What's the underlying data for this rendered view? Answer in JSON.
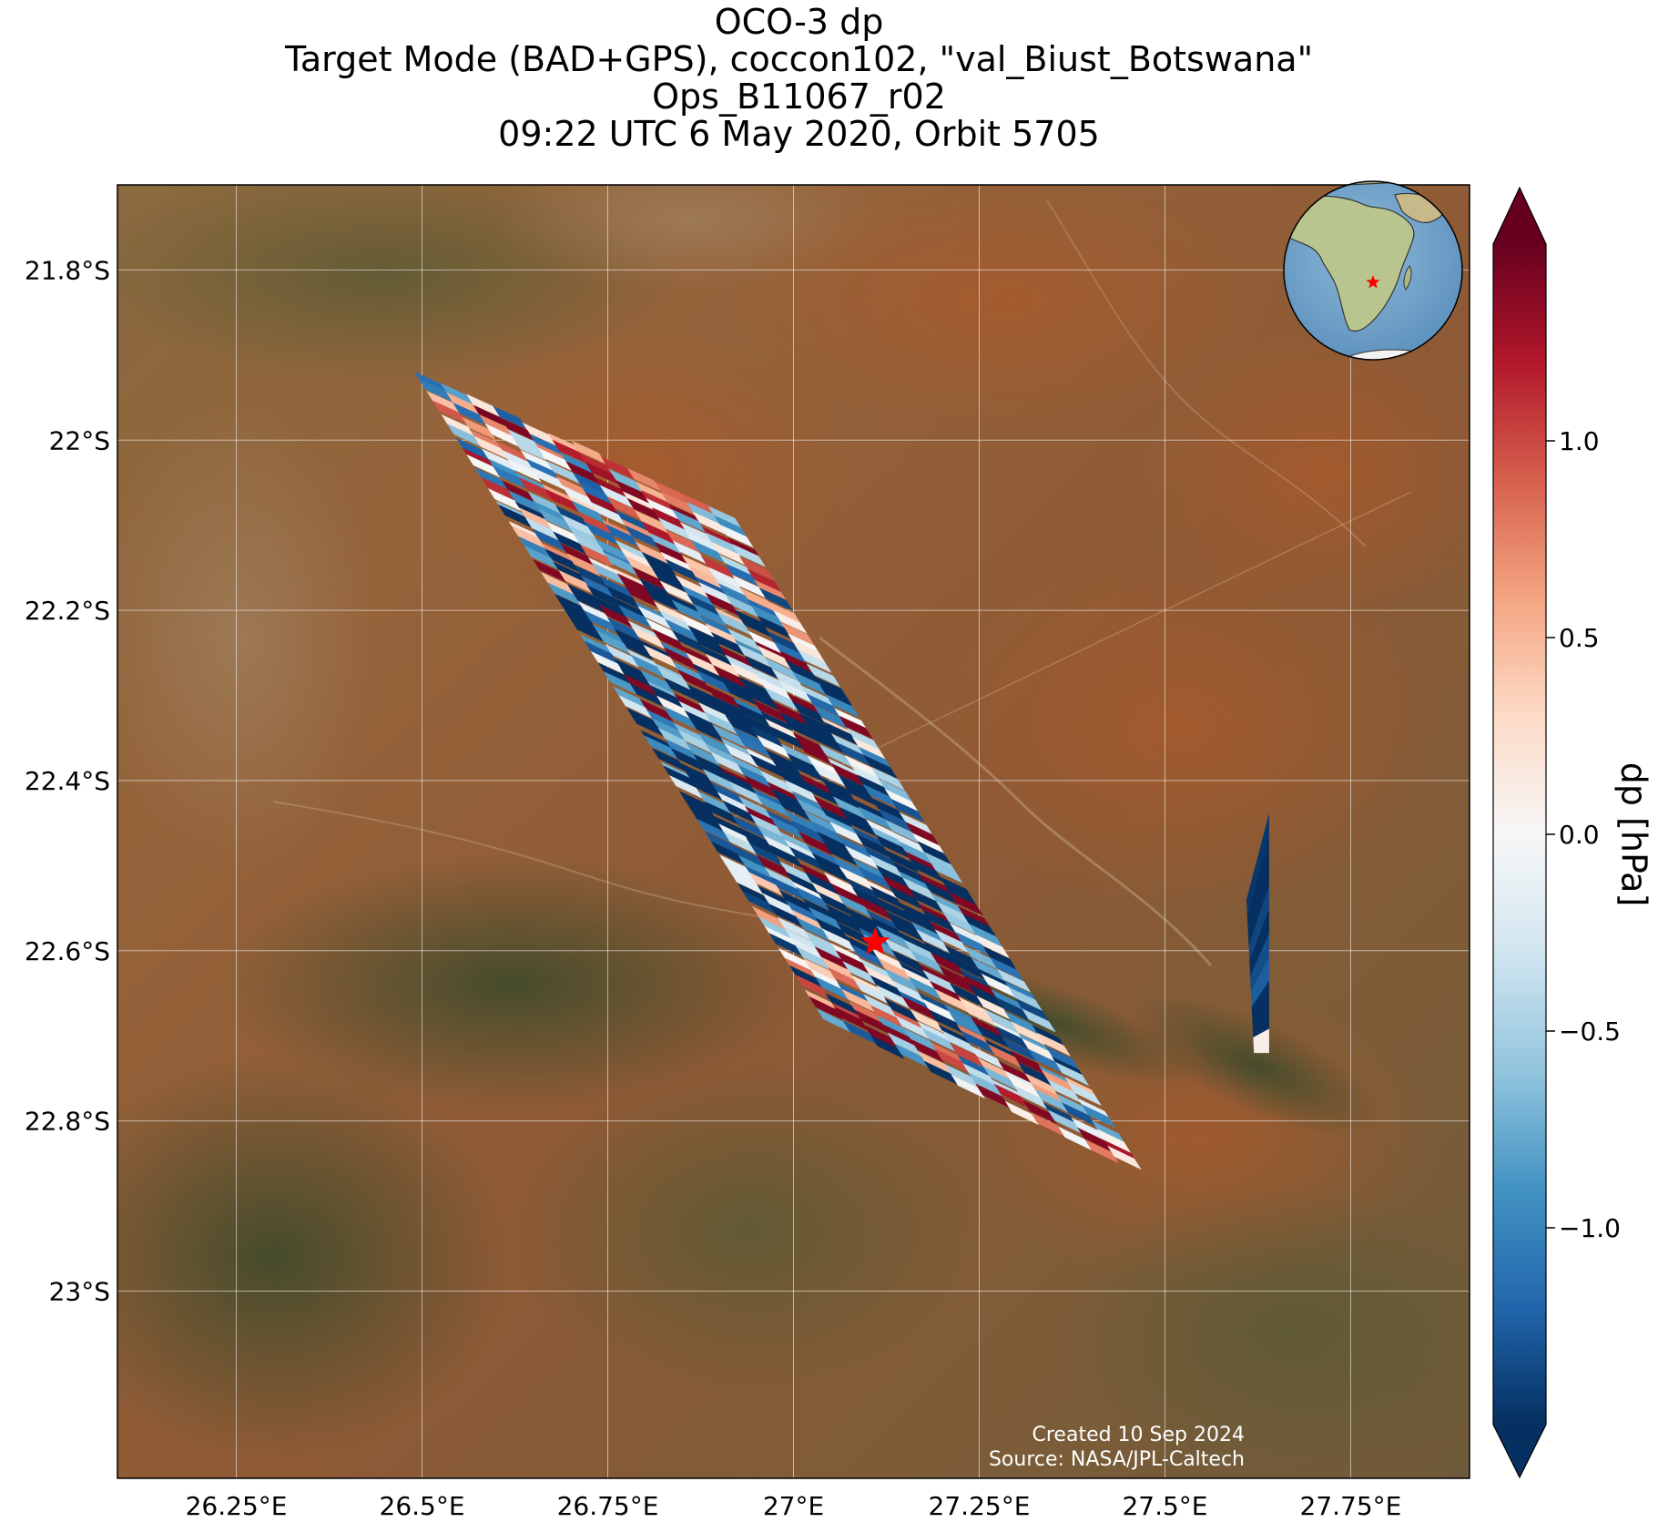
{
  "title": {
    "line1": "OCO-3 dp",
    "line2": "Target Mode (BAD+GPS), coccon102, \"val_Biust_Botswana\"",
    "line3": "Ops_B11067_r02",
    "line4": "09:22 UTC 6 May 2020, Orbit 5705"
  },
  "credits": {
    "created": "Created 10 Sep 2024",
    "source": "Source: NASA/JPL-Caltech"
  },
  "map": {
    "lon_range": [
      26.09,
      27.91
    ],
    "lat_range": [
      -23.22,
      -21.7
    ],
    "lon_ticks": [
      {
        "value": 26.25,
        "label": "26.25°E"
      },
      {
        "value": 26.5,
        "label": "26.5°E"
      },
      {
        "value": 26.75,
        "label": "26.75°E"
      },
      {
        "value": 27.0,
        "label": "27°E"
      },
      {
        "value": 27.25,
        "label": "27.25°E"
      },
      {
        "value": 27.5,
        "label": "27.5°E"
      },
      {
        "value": 27.75,
        "label": "27.75°E"
      }
    ],
    "lat_ticks": [
      {
        "value": -21.8,
        "label": "21.8°S"
      },
      {
        "value": -22.0,
        "label": "22°S"
      },
      {
        "value": -22.2,
        "label": "22.2°S"
      },
      {
        "value": -22.4,
        "label": "22.4°S"
      },
      {
        "value": -22.6,
        "label": "22.6°S"
      },
      {
        "value": -22.8,
        "label": "22.8°S"
      },
      {
        "value": -23.0,
        "label": "23°S"
      }
    ],
    "grid": true,
    "background": "satellite imagery, arid terrain",
    "target": {
      "lon": 27.11,
      "lat": -22.59,
      "marker": "red-star-icon",
      "color": "#ff0000"
    },
    "main_swath": {
      "corners": [
        [
          26.49,
          -21.92
        ],
        [
          26.92,
          -22.09
        ],
        [
          27.47,
          -22.86
        ],
        [
          27.04,
          -22.68
        ]
      ],
      "rows": 12,
      "cols": 62,
      "dp_mean_along_track": [
        0.1,
        -0.2,
        -0.8,
        -1.3,
        -1.5,
        -1.2,
        -0.6,
        -0.1
      ],
      "dp_spread": 0.9
    },
    "small_swath": {
      "corners": [
        [
          27.61,
          -22.54
        ],
        [
          27.64,
          -22.44
        ],
        [
          27.64,
          -22.72
        ],
        [
          27.62,
          -22.72
        ]
      ],
      "dp_typical": -1.4
    },
    "inset_globe": {
      "center_lon": 20,
      "center_lat": -10,
      "marker": "red-star-icon"
    }
  },
  "colorbar": {
    "label": "dp [hPa]",
    "cmap": "RdBu_r",
    "range": [
      -1.5,
      1.5
    ],
    "extend": "both",
    "ticks": [
      {
        "value": 1.0,
        "label": "1.0"
      },
      {
        "value": 0.5,
        "label": "0.5"
      },
      {
        "value": 0.0,
        "label": "0.0"
      },
      {
        "value": -0.5,
        "label": "−0.5"
      },
      {
        "value": -1.0,
        "label": "−1.0"
      }
    ],
    "colors": [
      "#053061",
      "#2166ac",
      "#4393c3",
      "#92c5de",
      "#d1e5f0",
      "#f7f7f7",
      "#fddbc7",
      "#f4a582",
      "#d6604d",
      "#b2182b",
      "#67001f"
    ]
  }
}
